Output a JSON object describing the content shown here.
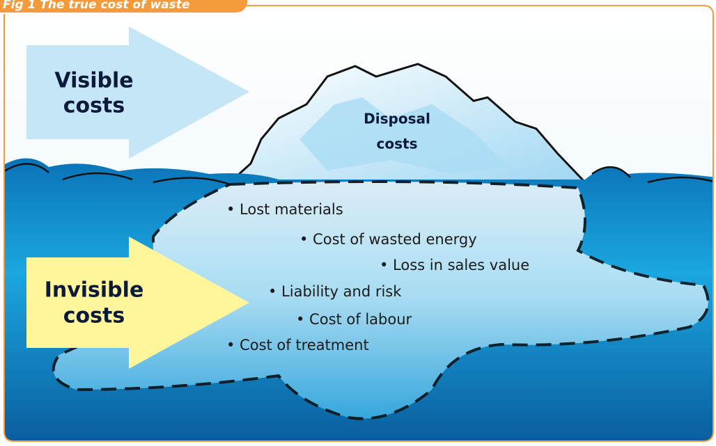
{
  "figure": {
    "title": "Fig 1  The true cost of waste"
  },
  "visible": {
    "lines": [
      "Visible",
      "costs"
    ]
  },
  "invisible": {
    "lines": [
      "Invisible",
      "costs"
    ]
  },
  "iceberg": {
    "lines": [
      "Disposal",
      "costs"
    ]
  },
  "items": [
    "• Lost materials",
    "• Cost of wasted energy",
    "• Loss in sales value",
    "• Liability and risk",
    "• Cost of labour",
    "• Cost of treatment"
  ]
}
